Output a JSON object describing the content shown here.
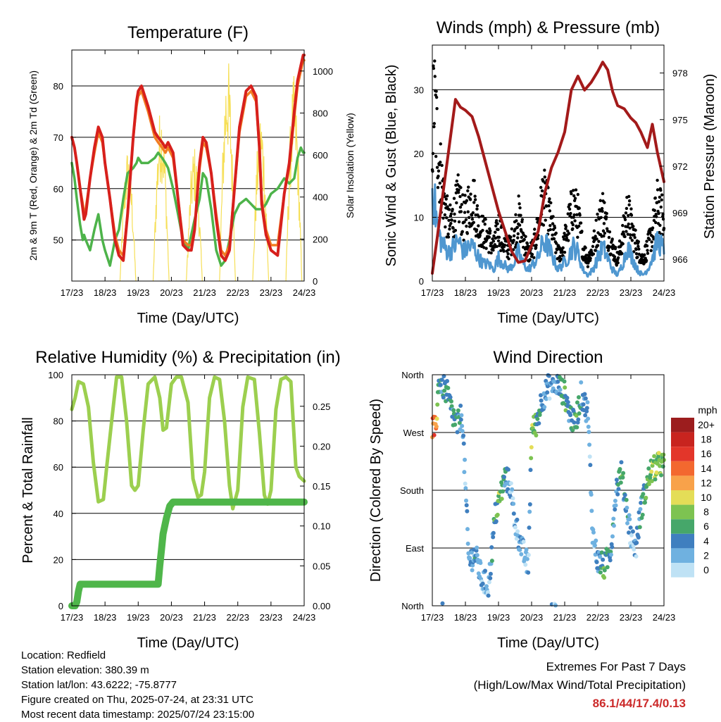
{
  "colors": {
    "temp_red": "#d7201c",
    "temp_orange": "#f27d22",
    "dewpoint_green": "#4db34a",
    "solar_yellow": "#f6df57",
    "wind_blue": "#4f97d0",
    "gust_black": "#000000",
    "pressure_maroon": "#a31a1a",
    "rh_lightgreen": "#9ccf4f",
    "precip_green": "#4fb64a",
    "extremes_red": "#cc2a2a"
  },
  "x_ticks": [
    "17/23",
    "18/23",
    "19/23",
    "20/23",
    "21/23",
    "22/23",
    "23/23",
    "24/23"
  ],
  "chart_data": [
    {
      "id": "temperature",
      "type": "line",
      "title": "Temperature (F)",
      "xlabel": "Time (Day/UTC)",
      "ylabel": "2m & 9m T (Red, Orange) & 2m Td (Green)",
      "y2label": "Solar Insolation (Yellow)",
      "ylim": [
        42,
        87
      ],
      "yticks": [
        50,
        60,
        70,
        80
      ],
      "y2lim": [
        0,
        1100
      ],
      "y2ticks": [
        0,
        200,
        400,
        600,
        800,
        1000
      ],
      "x": [
        0,
        0.08,
        0.15,
        0.25,
        0.33,
        0.37,
        0.42,
        0.55,
        0.68,
        0.8,
        0.92,
        1.0,
        1.15,
        1.3,
        1.42,
        1.55,
        1.68,
        1.85,
        1.95,
        2.0,
        2.1,
        2.3,
        2.5,
        2.6,
        2.72,
        2.82,
        2.9,
        3.05,
        3.2,
        3.35,
        3.5,
        3.6,
        3.7,
        3.85,
        3.95,
        4.05,
        4.2,
        4.35,
        4.5,
        4.62,
        4.75,
        4.9,
        5.05,
        5.25,
        5.4,
        5.55,
        5.65,
        5.72,
        5.85,
        6.0,
        6.2,
        6.4,
        6.55,
        6.7,
        6.8,
        6.9,
        6.97,
        7.0
      ],
      "series": [
        {
          "name": "2m T",
          "color": "#d7201c",
          "values": [
            70,
            68,
            65,
            60,
            56,
            54,
            55,
            62,
            68,
            72,
            70,
            65,
            58,
            50,
            47,
            46,
            55,
            70,
            77,
            79,
            80,
            76,
            71,
            70,
            69,
            68,
            69,
            67,
            58,
            49,
            48,
            48,
            52,
            65,
            70,
            69,
            63,
            54,
            47,
            46,
            48,
            60,
            72,
            79,
            80,
            78,
            68,
            57,
            51,
            48,
            47,
            59,
            65,
            75,
            81,
            84,
            86,
            86
          ]
        },
        {
          "name": "9m T",
          "color": "#f27d22",
          "values": [
            70,
            68,
            65,
            60,
            57,
            55,
            56,
            62,
            67,
            71,
            69,
            65,
            58,
            51,
            48,
            47,
            55,
            70,
            76,
            78,
            79,
            75,
            70,
            69,
            68,
            67,
            68,
            66,
            58,
            50,
            49,
            49,
            52,
            64,
            69,
            68,
            63,
            55,
            48,
            47,
            49,
            60,
            71,
            78,
            79,
            77,
            68,
            58,
            52,
            49,
            49,
            59,
            64,
            74,
            80,
            83,
            85,
            85
          ]
        },
        {
          "name": "2m Td",
          "color": "#4db34a",
          "values": [
            65,
            62,
            58,
            53,
            50,
            51,
            50,
            48,
            52,
            55,
            50,
            48,
            45,
            50,
            52,
            58,
            63,
            64,
            65,
            66,
            65,
            65,
            66,
            67,
            66,
            65,
            64,
            60,
            55,
            50,
            48,
            51,
            54,
            58,
            63,
            62,
            56,
            48,
            45,
            46,
            50,
            55,
            57,
            58,
            57,
            56,
            56,
            56,
            57,
            59,
            60,
            62,
            61,
            62,
            66,
            68,
            67,
            67
          ]
        }
      ],
      "solar": {
        "name": "Solar Insolation",
        "color": "#f6df57",
        "days": [
          0,
          1,
          2,
          3,
          4,
          5,
          6
        ],
        "peaks": [
          0,
          640,
          850,
          650,
          1080,
          820,
          980
        ]
      }
    },
    {
      "id": "winds",
      "type": "scatter",
      "title": "Winds (mph) & Pressure (mb)",
      "xlabel": "Time (Day/UTC)",
      "ylabel": "Sonic Wind & Gust (Blue, Black)",
      "y2label": "Station Pressure (Maroon)",
      "ylim": [
        0,
        37
      ],
      "yticks": [
        0,
        10,
        20,
        30
      ],
      "y2lim": [
        964.6,
        979.8
      ],
      "y2ticks": [
        966,
        969,
        972,
        975,
        978
      ],
      "gust_x": [
        0,
        0.05,
        0.2,
        0.35,
        0.5,
        0.65,
        0.8,
        0.95,
        1.1,
        1.25,
        1.4,
        1.55,
        1.7,
        1.85,
        2.0,
        2.15,
        2.3,
        2.45,
        2.6,
        2.75,
        2.9,
        3.05,
        3.2,
        3.35,
        3.5,
        3.65,
        3.8,
        3.95,
        4.1,
        4.25,
        4.4,
        4.55,
        4.7,
        4.85,
        5.0,
        5.15,
        5.3,
        5.45,
        5.6,
        5.75,
        5.9,
        6.05,
        6.2,
        6.35,
        6.5,
        6.65,
        6.8,
        6.95,
        7.0
      ],
      "gust": [
        26,
        34,
        22,
        15,
        10,
        12,
        15,
        11,
        14,
        15,
        10,
        9,
        8,
        6,
        10,
        7,
        6,
        8,
        12,
        8,
        5,
        6,
        10,
        16,
        13,
        9,
        5,
        6,
        10,
        14,
        12,
        6,
        4,
        6,
        10,
        13,
        9,
        6,
        4,
        8,
        13,
        9,
        6,
        4,
        6,
        9,
        14,
        12,
        10
      ],
      "wind": [
        16,
        14,
        8,
        6,
        5,
        6,
        7,
        5,
        6,
        6,
        4,
        3,
        3,
        2,
        4,
        3,
        2,
        3,
        5,
        3,
        2,
        3,
        4,
        7,
        6,
        4,
        2,
        3,
        4,
        6,
        5,
        2,
        1,
        2,
        4,
        6,
        4,
        2,
        1,
        3,
        6,
        4,
        2,
        1,
        2,
        4,
        7,
        6,
        5
      ],
      "pressure_x": [
        0,
        0.15,
        0.3,
        0.5,
        0.7,
        0.85,
        1.0,
        1.2,
        1.4,
        1.6,
        1.8,
        2.0,
        2.2,
        2.4,
        2.6,
        2.8,
        3.0,
        3.2,
        3.4,
        3.6,
        3.8,
        4.0,
        4.2,
        4.4,
        4.6,
        4.8,
        5.0,
        5.15,
        5.3,
        5.45,
        5.6,
        5.8,
        6.0,
        6.15,
        6.3,
        6.5,
        6.65,
        6.8,
        7.0
      ],
      "pressure": [
        965.1,
        967.4,
        969.9,
        973.1,
        976.3,
        975.8,
        975.6,
        975.2,
        973.9,
        972.3,
        970.7,
        969.1,
        967.8,
        966.5,
        965.8,
        965.9,
        966.9,
        967.8,
        970.3,
        971.9,
        972.9,
        974.2,
        976.9,
        977.8,
        976.9,
        977.4,
        978.1,
        978.7,
        978.2,
        976.8,
        975.9,
        975.7,
        975.1,
        974.8,
        974.2,
        973.2,
        974.7,
        972.9,
        971.0
      ],
      "series": [
        {
          "name": "Sonic Wind",
          "color": "#4f97d0"
        },
        {
          "name": "Gust",
          "color": "#000000"
        },
        {
          "name": "Station Pressure",
          "color": "#a31a1a"
        }
      ]
    },
    {
      "id": "humidity",
      "type": "line",
      "title": "Relative Humidity (%) & Precipitation (in)",
      "xlabel": "Time (Day/UTC)",
      "ylabel": "Percent & Total Rainfall",
      "ylim": [
        0,
        100
      ],
      "yticks": [
        0,
        20,
        40,
        60,
        80,
        100
      ],
      "y2lim": [
        0,
        0.2895
      ],
      "y2ticks": [
        "0.00",
        "0.05",
        "0.10",
        "0.15",
        "0.20",
        "0.25"
      ],
      "x": [
        0,
        0.1,
        0.2,
        0.35,
        0.5,
        0.65,
        0.8,
        0.95,
        1.05,
        1.2,
        1.35,
        1.5,
        1.65,
        1.8,
        1.9,
        2.0,
        2.15,
        2.3,
        2.5,
        2.65,
        2.75,
        2.85,
        3.0,
        3.15,
        3.3,
        3.5,
        3.65,
        3.8,
        3.9,
        4.0,
        4.15,
        4.3,
        4.45,
        4.6,
        4.75,
        4.85,
        5.0,
        5.15,
        5.3,
        5.5,
        5.65,
        5.8,
        5.9,
        6.0,
        6.15,
        6.3,
        6.45,
        6.6,
        6.75,
        6.85,
        7.0
      ],
      "series": [
        {
          "name": "Relative Humidity",
          "color": "#9ccf4f",
          "values": [
            85,
            90,
            97,
            96,
            86,
            62,
            45,
            46,
            60,
            80,
            99,
            99,
            80,
            52,
            50,
            52,
            76,
            96,
            99,
            90,
            76,
            77,
            96,
            99,
            99,
            88,
            55,
            47,
            48,
            58,
            90,
            99,
            98,
            80,
            52,
            42,
            50,
            86,
            99,
            98,
            75,
            48,
            44,
            50,
            85,
            98,
            99,
            97,
            60,
            56,
            54
          ]
        }
      ],
      "precip": {
        "name": "Total Precipitation",
        "color": "#4fb64a",
        "x": [
          0,
          0.1,
          0.15,
          0.2,
          0.25,
          1.0,
          2.0,
          2.6,
          2.65,
          2.7,
          2.75,
          2.85,
          2.95,
          3.05,
          3.15,
          3.5,
          4.0,
          5.0,
          6.0,
          7.0
        ],
        "values": [
          0,
          0,
          0.005,
          0.018,
          0.027,
          0.027,
          0.027,
          0.027,
          0.05,
          0.07,
          0.09,
          0.11,
          0.125,
          0.13,
          0.13,
          0.13,
          0.13,
          0.13,
          0.13,
          0.13
        ]
      }
    },
    {
      "id": "direction",
      "type": "scatter",
      "title": "Wind Direction",
      "xlabel": "Time (Day/UTC)",
      "ylabel": "Direction (Colored By Speed)",
      "ylim": [
        0,
        360
      ],
      "ytick_labels": [
        "North",
        "East",
        "South",
        "West",
        "North"
      ],
      "legend_title": "mph",
      "legend_labels": [
        "20+",
        "18",
        "16",
        "14",
        "12",
        "10",
        "8",
        "6",
        "4",
        "2",
        "0"
      ],
      "legend_colors": [
        "#9c1d1e",
        "#c8241f",
        "#e3362a",
        "#f3682f",
        "#f8a24a",
        "#e4dd57",
        "#7dc351",
        "#46a76a",
        "#3f7fbf",
        "#6fb1e0",
        "#bfe2f5"
      ],
      "direction_x": [
        0,
        0.1,
        0.2,
        0.3,
        0.45,
        0.6,
        0.75,
        0.9,
        1.1,
        1.3,
        1.5,
        1.7,
        1.9,
        2.05,
        2.2,
        2.35,
        2.5,
        2.7,
        2.9,
        3.0,
        3.15,
        3.3,
        3.5,
        3.7,
        3.85,
        4.0,
        4.15,
        4.3,
        4.5,
        4.7,
        4.85,
        5.0,
        5.2,
        5.4,
        5.55,
        5.7,
        5.85,
        6.0,
        6.15,
        6.3,
        6.45,
        6.6,
        6.75,
        6.85,
        6.95
      ],
      "direction": [
        275,
        275,
        350,
        345,
        330,
        300,
        280,
        300,
        70,
        80,
        40,
        30,
        140,
        170,
        200,
        190,
        130,
        90,
        60,
        270,
        285,
        320,
        340,
        350,
        340,
        330,
        300,
        280,
        330,
        300,
        110,
        70,
        60,
        90,
        180,
        210,
        160,
        110,
        90,
        150,
        180,
        210,
        215,
        220,
        220
      ],
      "speed": [
        14,
        13,
        5,
        4,
        6,
        4,
        6,
        2,
        2,
        4,
        2,
        2,
        6,
        8,
        4,
        2,
        2,
        2,
        2,
        8,
        6,
        4,
        2,
        2,
        4,
        6,
        4,
        6,
        4,
        2,
        2,
        4,
        6,
        4,
        2,
        6,
        4,
        2,
        2,
        4,
        6,
        8,
        9,
        8,
        7
      ]
    }
  ],
  "info": {
    "location": "Location: Redfield",
    "elevation": "Station elevation: 380.39 m",
    "latlon": "Station lat/lon: 43.6222; -75.8777",
    "created": "Figure created on Thu, 2025-07-24, at 23:31 UTC",
    "recent": "Most recent data timestamp: 2025/07/24 23:15:00"
  },
  "extremes": {
    "heading": "Extremes For Past 7 Days",
    "subheading": "(High/Low/Max Wind/Total Precipitation)",
    "value": "86.1/44/17.4/0.13"
  }
}
